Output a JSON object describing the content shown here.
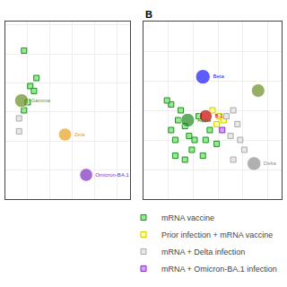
{
  "chart_data": [
    {
      "type": "scatter",
      "xlim": [
        -1.0,
        9.0
      ],
      "ylim": [
        0.0,
        11.0
      ],
      "xticks": [
        -1.0,
        0.8,
        2.6,
        4.4,
        6.2,
        8.0
      ],
      "yticks": [
        0.0,
        1.8,
        3.6,
        5.4,
        7.2,
        9.0,
        10.8
      ],
      "grid": true,
      "tick_labels": false,
      "series": [
        {
          "name": "mRNA vaccine",
          "marker": "square",
          "color": "#90ee90",
          "edgecolor": "#228B22",
          "x": [
            0.5,
            1.5,
            1.0,
            1.3,
            0.8,
            0.5
          ],
          "values": [
            9.2,
            7.5,
            7.0,
            6.7,
            6.0,
            5.5
          ]
        },
        {
          "name": "mRNA + Delta infection",
          "marker": "square",
          "color": "#e8e8e8",
          "edgecolor": "#aaaaaa",
          "x": [
            0.1,
            0.1
          ],
          "values": [
            5.0,
            4.2
          ]
        },
        {
          "marker": "circle",
          "edgecolor": "#ffffff",
          "colors": [
            "#6b8e23",
            "#e8a020",
            "#7B2FBE"
          ],
          "x": [
            0.3,
            3.8,
            5.5
          ],
          "values": [
            6.1,
            4.0,
            1.5
          ],
          "sizes": [
            90,
            80,
            80
          ],
          "labels": [
            "Gamma",
            "Zeta",
            "Omicron-BA.1"
          ]
        }
      ]
    },
    {
      "type": "scatter",
      "title": "B",
      "xlim": [
        0.5,
        10.5
      ],
      "ylim": [
        1.0,
        10.0
      ],
      "xticks": [
        0.5,
        2.3,
        4.1,
        5.9,
        7.7,
        9.5
      ],
      "yticks": [
        1.0,
        2.5,
        4.0,
        5.5,
        7.0,
        8.5,
        10.0
      ],
      "grid": true,
      "tick_labels": false,
      "legend": "lower right",
      "series": [
        {
          "name": "mRNA vaccine",
          "marker": "square",
          "color": "#90ee90",
          "edgecolor": "#228B22",
          "x": [
            2.5,
            3.2,
            3.0,
            3.5,
            3.8,
            4.2,
            4.5,
            5.3,
            5.0,
            5.8,
            2.5,
            2.8,
            4.0,
            3.5,
            2.8,
            4.8,
            2.2
          ],
          "values": [
            5.8,
            5.5,
            5.0,
            4.7,
            4.2,
            4.0,
            5.2,
            4.5,
            4.0,
            3.8,
            4.5,
            4.0,
            3.5,
            3.0,
            3.2,
            3.2,
            6.0
          ]
        },
        {
          "name": "Prior infection + mRNA vaccine",
          "marker": "square",
          "color": "#ffff99",
          "edgecolor": "#cccc00",
          "x": [
            5.5,
            6.0,
            6.3,
            5.8
          ],
          "values": [
            5.5,
            5.2,
            5.0,
            4.8
          ]
        },
        {
          "name": "mRNA + Delta infection",
          "marker": "square",
          "color": "#e8e8e8",
          "edgecolor": "#aaaaaa",
          "x": [
            6.5,
            7.0,
            7.3,
            6.8,
            7.5,
            7.8,
            7.0
          ],
          "values": [
            5.2,
            5.5,
            4.8,
            4.2,
            4.0,
            3.5,
            3.0
          ]
        },
        {
          "name": "mRNA + Omicron-BA.1 infection",
          "marker": "square",
          "color": "#dda0ff",
          "edgecolor": "#7B2FBE",
          "x": [
            6.2
          ],
          "values": [
            4.5
          ]
        },
        {
          "marker": "circle",
          "edgecolor": "#ffffff",
          "colors": [
            "#1a1aff",
            "#228B22",
            "#cc0000",
            "#909090",
            "#6b8e23"
          ],
          "x": [
            4.8,
            3.7,
            5.0,
            8.5,
            8.8
          ],
          "values": [
            7.2,
            5.0,
            5.2,
            2.8,
            6.5
          ],
          "sizes": [
            100,
            90,
            80,
            90,
            85
          ],
          "labels": [
            "Beta",
            "Alpha",
            "B.1",
            "Delta",
            null
          ]
        }
      ]
    }
  ]
}
